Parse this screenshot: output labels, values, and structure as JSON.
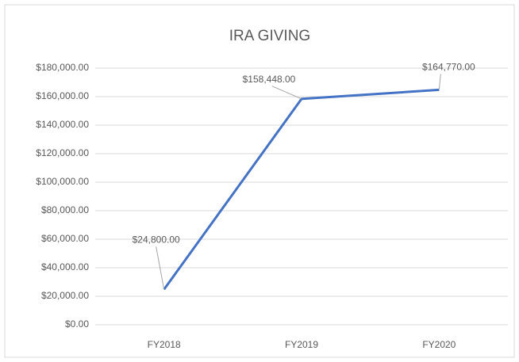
{
  "chart_data": {
    "type": "line",
    "title": "IRA GIVING",
    "categories": [
      "FY2018",
      "FY2019",
      "FY2020"
    ],
    "series": [
      {
        "color": "#4472c4",
        "values": [
          24800,
          158448,
          164770
        ],
        "value_labels": [
          "$24,800.00",
          "$158,448.00",
          "$164,770.00"
        ]
      }
    ],
    "ylim": [
      0,
      180000
    ],
    "yticks": [
      {
        "value": 0,
        "label": "$0.00"
      },
      {
        "value": 20000,
        "label": "$20,000.00"
      },
      {
        "value": 40000,
        "label": "$40,000.00"
      },
      {
        "value": 60000,
        "label": "$60,000.00"
      },
      {
        "value": 80000,
        "label": "$80,000.00"
      },
      {
        "value": 100000,
        "label": "$100,000.00"
      },
      {
        "value": 120000,
        "label": "$120,000.00"
      },
      {
        "value": 140000,
        "label": "$140,000.00"
      },
      {
        "value": 160000,
        "label": "$160,000.00"
      },
      {
        "value": 180000,
        "label": "$180,000.00"
      }
    ],
    "grid": true
  }
}
